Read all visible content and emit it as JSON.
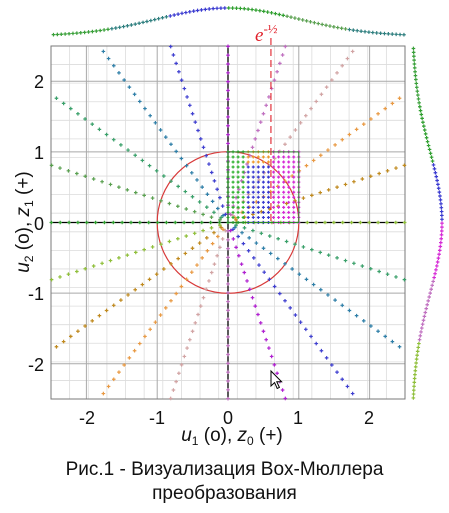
{
  "figure": {
    "caption_line1": "Рис.1 -  Визуализация Box-Мюллера",
    "caption_line2": "преобразования",
    "marker_label": "e",
    "marker_exponent": "-½"
  },
  "chart_data": {
    "type": "scatter",
    "x_ticks": [
      "-2",
      "-1",
      "0",
      "1",
      "2"
    ],
    "y_ticks": [
      "2",
      "1",
      "0",
      "-1",
      "-2"
    ],
    "xlim": [
      -2.5,
      2.5
    ],
    "ylim": [
      -2.5,
      2.5
    ],
    "grid": true,
    "xlabel": {
      "u": "u",
      "u_sub": "1",
      "mid": " (o),  ",
      "z": "z",
      "z_sub": "0",
      "end": " (+)"
    },
    "ylabel": {
      "u": "u",
      "u_sub": "2",
      "mid": " (o),  ",
      "z": "z",
      "z_sub": "1",
      "end": " (+)"
    },
    "unit_square": {
      "x": [
        0,
        1
      ],
      "y": [
        0,
        1
      ]
    },
    "unit_circle_radius": 1,
    "marker_x": 0.6065,
    "grid_divisions": 19,
    "colors": {
      "axis_line": "#000000",
      "grid_major": "#a9a9a9",
      "grid_minor": "#dcdcdc",
      "circle": "#d83a3a",
      "marker_line": "#e0202a",
      "square_green": "#2db12d",
      "square_blue": "#3a3ad0",
      "square_magenta": "#d62ad6",
      "square_orange": "#ef9a2a",
      "ray_palette": [
        "#8fbf3a",
        "#c08a1f",
        "#e99a44",
        "#d2a4a4",
        "#c070c0",
        "#b020d0",
        "#4040d0",
        "#2f7fa8",
        "#3aa06a",
        "#5aa050",
        "#2f9f2f"
      ]
    },
    "marginal_top": {
      "type": "density",
      "distribution": "normal",
      "mean": 0,
      "sd": 1
    },
    "marginal_right": {
      "type": "density",
      "distribution": "normal",
      "mean": 0,
      "sd": 1
    },
    "cursor": "arrow-pointer"
  }
}
